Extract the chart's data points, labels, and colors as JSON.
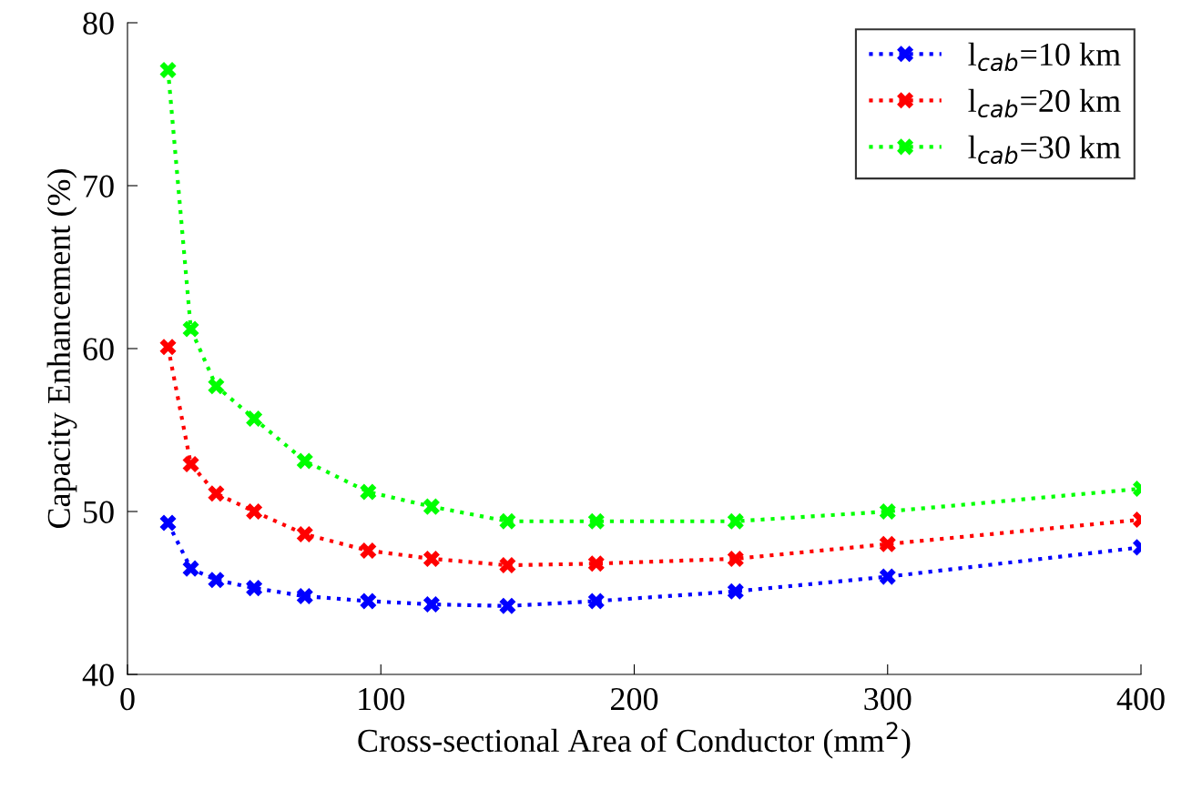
{
  "chart_data": {
    "type": "line",
    "xlabel": "Cross-sectional Area of Conductor (mm$^{2}$)",
    "ylabel": "Capacity Enhancement (%)",
    "x": [
      16,
      25,
      35,
      50,
      70,
      95,
      120,
      150,
      185,
      240,
      300,
      400
    ],
    "series": [
      {
        "name": "l$_{cab}$=10 km",
        "color": "#0000ff",
        "values": [
          49.3,
          46.5,
          45.8,
          45.3,
          44.8,
          44.5,
          44.3,
          44.2,
          44.5,
          45.1,
          46.0,
          47.8
        ]
      },
      {
        "name": "l$_{cab}$=20 km",
        "color": "#ff0000",
        "values": [
          60.1,
          52.9,
          51.1,
          50.0,
          48.6,
          47.6,
          47.1,
          46.7,
          46.8,
          47.1,
          48.0,
          49.5
        ]
      },
      {
        "name": "l$_{cab}$=30 km",
        "color": "#00ff00",
        "values": [
          77.1,
          61.2,
          57.7,
          55.7,
          53.1,
          51.2,
          50.3,
          49.4,
          49.4,
          49.4,
          50.0,
          51.4
        ]
      }
    ],
    "xlim": [
      0,
      400
    ],
    "xticks": [
      0,
      100,
      200,
      300,
      400
    ],
    "ylim": [
      40,
      80
    ],
    "yticks": [
      40,
      50,
      60,
      70,
      80
    ],
    "grid": false,
    "legend": "top right",
    "marker": "cross",
    "line_style": "dotted"
  }
}
